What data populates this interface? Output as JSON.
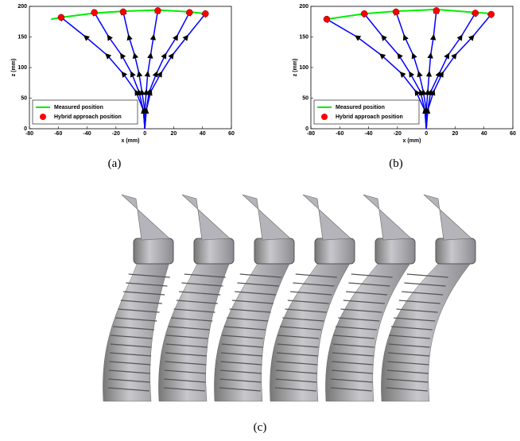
{
  "chart_data": [
    {
      "type": "line",
      "caption": "(a)",
      "xlabel": "x (mm)",
      "ylabel": "z (mm)",
      "xlim": [
        -80,
        60
      ],
      "ylim": [
        0,
        200
      ],
      "xticks": [
        -80,
        -60,
        -40,
        -20,
        0,
        20,
        40,
        60
      ],
      "yticks": [
        0,
        50,
        100,
        150,
        200
      ],
      "legend": "lower left",
      "curve_color": "#0000ff",
      "series": [
        {
          "name": "Measured position",
          "color": "#00ee00",
          "x": [
            -65,
            -58,
            -35,
            -15,
            9,
            31,
            42
          ],
          "values": [
            179,
            182,
            189,
            192,
            194,
            191,
            188
          ]
        },
        {
          "name": "Hybrid approach position",
          "color": "#ff0000",
          "marker": "circle",
          "x": [
            -58,
            -35,
            -15,
            9,
            31,
            42
          ],
          "values": [
            182,
            190,
            191,
            193,
            190,
            188
          ]
        }
      ],
      "curves": [
        {
          "x": [
            0,
            -1,
            -6,
            -15,
            -26,
            -41,
            -58
          ],
          "y": [
            0,
            30,
            60,
            90,
            120,
            150,
            182
          ]
        },
        {
          "x": [
            0,
            -1,
            -4,
            -9,
            -16,
            -25,
            -35
          ],
          "y": [
            0,
            30,
            60,
            90,
            120,
            150,
            190
          ]
        },
        {
          "x": [
            0,
            0,
            -2,
            -4,
            -7,
            -11,
            -15
          ],
          "y": [
            0,
            30,
            60,
            90,
            120,
            150,
            191
          ]
        },
        {
          "x": [
            0,
            0,
            1,
            2,
            4,
            6,
            9
          ],
          "y": [
            0,
            30,
            60,
            90,
            120,
            150,
            193
          ]
        },
        {
          "x": [
            0,
            1,
            3,
            8,
            14,
            22,
            31
          ],
          "y": [
            0,
            30,
            60,
            90,
            120,
            150,
            190
          ]
        },
        {
          "x": [
            0,
            1,
            4,
            11,
            19,
            29,
            42
          ],
          "y": [
            0,
            30,
            60,
            90,
            120,
            150,
            188
          ]
        }
      ]
    },
    {
      "type": "line",
      "caption": "(b)",
      "xlabel": "x (mm)",
      "ylabel": "z (mm)",
      "xlim": [
        -80,
        60
      ],
      "ylim": [
        0,
        200
      ],
      "xticks": [
        -80,
        -60,
        -40,
        -20,
        0,
        20,
        40,
        60
      ],
      "yticks": [
        0,
        50,
        100,
        150,
        200
      ],
      "legend": "lower left",
      "curve_color": "#0000ff",
      "series": [
        {
          "name": "Measured position",
          "color": "#00ee00",
          "x": [
            -69,
            -43,
            -21,
            7,
            34,
            47
          ],
          "values": [
            179,
            188,
            192,
            195,
            190,
            188
          ]
        },
        {
          "name": "Hybrid approach position",
          "color": "#ff0000",
          "marker": "circle",
          "x": [
            -69,
            -43,
            -21,
            7,
            34,
            45
          ],
          "values": [
            179,
            188,
            191,
            193,
            189,
            187
          ]
        }
      ],
      "curves": [
        {
          "x": [
            0,
            -1,
            -7,
            -17,
            -31,
            -48,
            -69
          ],
          "y": [
            0,
            30,
            60,
            90,
            120,
            150,
            179
          ]
        },
        {
          "x": [
            0,
            -1,
            -4,
            -11,
            -19,
            -30,
            -43
          ],
          "y": [
            0,
            30,
            60,
            90,
            120,
            150,
            188
          ]
        },
        {
          "x": [
            0,
            0,
            -2,
            -5,
            -9,
            -15,
            -21
          ],
          "y": [
            0,
            30,
            60,
            90,
            120,
            150,
            191
          ]
        },
        {
          "x": [
            0,
            0,
            1,
            2,
            3,
            5,
            7
          ],
          "y": [
            0,
            30,
            60,
            90,
            120,
            150,
            193
          ]
        },
        {
          "x": [
            0,
            1,
            3,
            9,
            15,
            24,
            34
          ],
          "y": [
            0,
            30,
            60,
            90,
            120,
            150,
            189
          ]
        },
        {
          "x": [
            0,
            1,
            5,
            11,
            20,
            32,
            45
          ],
          "y": [
            0,
            30,
            60,
            90,
            120,
            150,
            187
          ]
        }
      ]
    }
  ],
  "photo": {
    "caption": "(c)"
  }
}
